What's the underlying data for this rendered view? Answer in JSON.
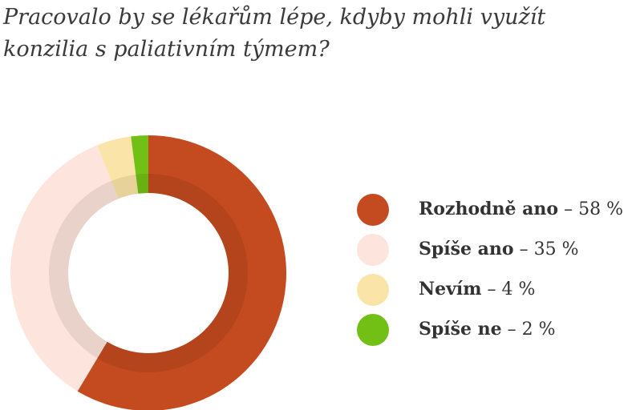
{
  "chart_data": {
    "type": "donut",
    "title": "Pracovalo by se lékařům lépe, kdyby mohli využít konzilia s paliativním týmem?",
    "categories": [
      "Rozhodně ano",
      "Spíše ano",
      "Nevím",
      "Spíše ne"
    ],
    "values": [
      58,
      35,
      4,
      2
    ],
    "value_labels": [
      "58 %",
      "35 %",
      "4 %",
      "2 %"
    ],
    "label_separator": "–",
    "colors": [
      "#c44a1f",
      "#fde4dc",
      "#fbe4a8",
      "#72c015"
    ],
    "legend": "right"
  }
}
